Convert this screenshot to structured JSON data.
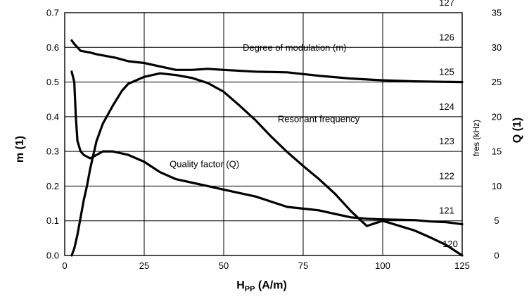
{
  "chart_data": {
    "type": "line",
    "xlabel": "H",
    "xlabel_sub": "PP",
    "xlabel_unit": " (A/m)",
    "ylabel_left": "m (1)",
    "ylabel_right": "Q (1)",
    "ylabel_inner": "fres (kHz)",
    "x_ticks": [
      "0",
      "25",
      "50",
      "75",
      "100",
      "125"
    ],
    "x_tick_values": [
      0,
      25,
      50,
      75,
      100,
      125
    ],
    "y_left_ticks": [
      "0.0",
      "0.1",
      "0.2",
      "0.3",
      "0.4",
      "0.5",
      "0.6",
      "0.7"
    ],
    "y_left_tick_values": [
      0,
      0.1,
      0.2,
      0.3,
      0.4,
      0.5,
      0.6,
      0.7
    ],
    "y_right_ticks": [
      "0",
      "5",
      "10",
      "15",
      "20",
      "25",
      "30",
      "35"
    ],
    "y_right_tick_values": [
      0,
      5,
      10,
      15,
      20,
      25,
      30,
      35
    ],
    "fres_ticks": [
      "120",
      "121",
      "122",
      "123",
      "124",
      "125",
      "126",
      "127"
    ],
    "fres_tick_values": [
      120,
      121,
      122,
      123,
      124,
      125,
      126,
      127
    ],
    "xlim": [
      0,
      125
    ],
    "ylim_left": [
      0,
      0.7
    ],
    "ylim_right": [
      0,
      35
    ],
    "fres_range": [
      120,
      127
    ],
    "grid": true,
    "annotations": [
      {
        "text": "Degree of modulation (m)",
        "x": 56,
        "y": 0.59
      },
      {
        "text": "Resonant frequency",
        "x": 67,
        "y": 0.385
      },
      {
        "text": "Quality factor (Q)",
        "x": 33,
        "y": 0.255
      }
    ],
    "series": [
      {
        "name": "Degree of modulation (m)",
        "axis": "left",
        "x": [
          2.2,
          3,
          5,
          8,
          10,
          13,
          16,
          20,
          25,
          30,
          35,
          40,
          45,
          50,
          60,
          70,
          80,
          90,
          100,
          110,
          125
        ],
        "y": [
          0.62,
          0.61,
          0.59,
          0.585,
          0.58,
          0.575,
          0.57,
          0.56,
          0.555,
          0.545,
          0.535,
          0.535,
          0.538,
          0.535,
          0.53,
          0.528,
          0.518,
          0.51,
          0.505,
          0.502,
          0.5
        ]
      },
      {
        "name": "Resonant frequency",
        "axis": "left",
        "x": [
          2.2,
          3,
          4,
          5,
          6,
          7,
          8,
          9,
          10,
          12,
          15,
          18,
          20,
          25,
          30,
          35,
          40,
          45,
          50,
          55,
          60,
          65,
          70,
          75,
          80,
          85,
          90,
          95,
          100,
          110,
          115,
          120,
          125
        ],
        "y": [
          0.0,
          0.02,
          0.06,
          0.11,
          0.16,
          0.2,
          0.25,
          0.29,
          0.33,
          0.38,
          0.43,
          0.475,
          0.495,
          0.515,
          0.525,
          0.52,
          0.512,
          0.497,
          0.472,
          0.432,
          0.39,
          0.342,
          0.298,
          0.258,
          0.22,
          0.178,
          0.128,
          0.085,
          0.1,
          0.072,
          0.052,
          0.03,
          0.0
        ]
      },
      {
        "name": "Quality factor (Q)",
        "axis": "right",
        "x": [
          2.2,
          3,
          3.5,
          4,
          5,
          6,
          8,
          10,
          12,
          15,
          20,
          25,
          30,
          35,
          40,
          45,
          50,
          60,
          70,
          80,
          85,
          90,
          95,
          100,
          110,
          115,
          120,
          125
        ],
        "y": [
          26.5,
          25,
          20,
          16.5,
          15,
          14.5,
          14,
          14.5,
          15,
          15,
          14.5,
          13.5,
          12,
          11,
          10.5,
          10,
          9.5,
          8.5,
          7,
          6.5,
          6,
          5.5,
          5.3,
          5.2,
          5.1,
          4.9,
          4.8,
          4.5
        ]
      }
    ]
  }
}
